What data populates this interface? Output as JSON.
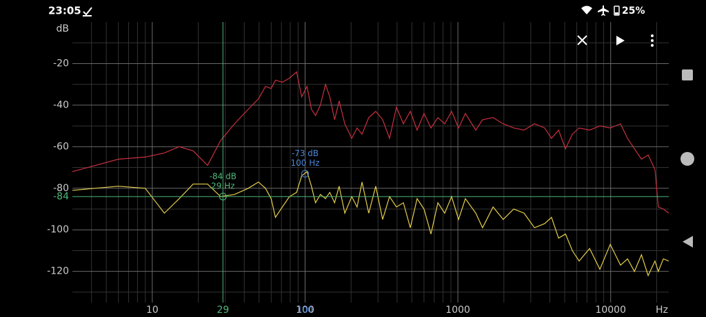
{
  "status_bar": {
    "time": "23:05",
    "battery": "25%"
  },
  "chart_data": {
    "type": "line",
    "log_x": true,
    "grid": true,
    "y_axis_label": "dB",
    "x_axis_label": "Hz",
    "xlim": [
      3,
      24000
    ],
    "ylim": [
      -135,
      0
    ],
    "xticks": [
      10,
      100,
      1000,
      10000
    ],
    "yticks": [
      -20,
      -40,
      -60,
      -80,
      -100,
      -120
    ],
    "x_minor_ticks": [
      4,
      5,
      6,
      7,
      8,
      9,
      20,
      30,
      40,
      50,
      60,
      70,
      80,
      90,
      200,
      300,
      400,
      500,
      600,
      700,
      800,
      900,
      2000,
      3000,
      4000,
      5000,
      6000,
      7000,
      8000,
      9000,
      20000
    ],
    "y_minor_ticks": [
      -10,
      -30,
      -50,
      -70,
      -90,
      -110,
      -130
    ],
    "x": [
      3,
      6,
      9,
      12,
      15,
      18.5,
      23,
      28,
      34.5,
      42.5,
      49.5,
      55,
      60,
      64,
      71,
      79,
      88,
      95,
      103,
      110,
      117,
      126,
      136,
      145,
      156,
      167,
      182,
      202,
      219,
      236,
      261,
      290,
      322,
      357,
      396,
      440,
      488,
      541,
      600,
      667,
      740,
      820,
      910,
      1010,
      1120,
      1310,
      1450,
      1700,
      1980,
      2320,
      2710,
      3170,
      3700,
      4100,
      4560,
      5060,
      5610,
      6220,
      7280,
      8500,
      9930,
      11600,
      12900,
      14300,
      15900,
      17600,
      19500,
      20500,
      22100,
      24000
    ],
    "series": [
      {
        "color": "#c8313f",
        "values": [
          -72,
          -66,
          -65,
          -63,
          -60,
          -62,
          -69,
          -57,
          -49,
          -42,
          -37,
          -31,
          -32,
          -28,
          -29,
          -27,
          -24,
          -36,
          -31,
          -42,
          -45,
          -40,
          -30,
          -36,
          -47,
          -38,
          -49,
          -56,
          -51,
          -54,
          -46,
          -43,
          -47,
          -56,
          -41,
          -49,
          -43,
          -52,
          -44,
          -51,
          -46,
          -49,
          -43,
          -51,
          -44,
          -52,
          -47,
          -46,
          -49,
          -51,
          -52,
          -49,
          -51,
          -56,
          -52,
          -61,
          -54,
          -51,
          -52,
          -50,
          -51,
          -49,
          -56,
          -61,
          -66,
          -64,
          -71,
          -89,
          -90,
          -92
        ]
      },
      {
        "color": "#e6cf4c",
        "values": [
          -81,
          -79,
          -80,
          -92,
          -85,
          -78,
          -78,
          -84,
          -83,
          -80,
          -77,
          -80,
          -85,
          -94,
          -89,
          -84,
          -82,
          -74,
          -72,
          -79,
          -87,
          -83,
          -85,
          -82,
          -87,
          -79,
          -92,
          -84,
          -89,
          -77,
          -92,
          -79,
          -95,
          -84,
          -89,
          -87,
          -99,
          -85,
          -90,
          -102,
          -87,
          -92,
          -84,
          -95,
          -85,
          -92,
          -99,
          -89,
          -95,
          -90,
          -92,
          -99,
          -97,
          -94,
          -104,
          -102,
          -110,
          -115,
          -109,
          -119,
          -107,
          -117,
          -114,
          -120,
          -112,
          -122,
          -115,
          -120,
          -114,
          -115
        ]
      }
    ],
    "cursors": [
      {
        "x": 29,
        "y": -84,
        "x_label": "29 Hz",
        "y_label": "-84 dB",
        "color": "#4fb87a"
      },
      {
        "x": 100,
        "y": -73,
        "x_label": "100 Hz",
        "y_label": "-73 dB",
        "color": "#4a86d8"
      }
    ]
  }
}
